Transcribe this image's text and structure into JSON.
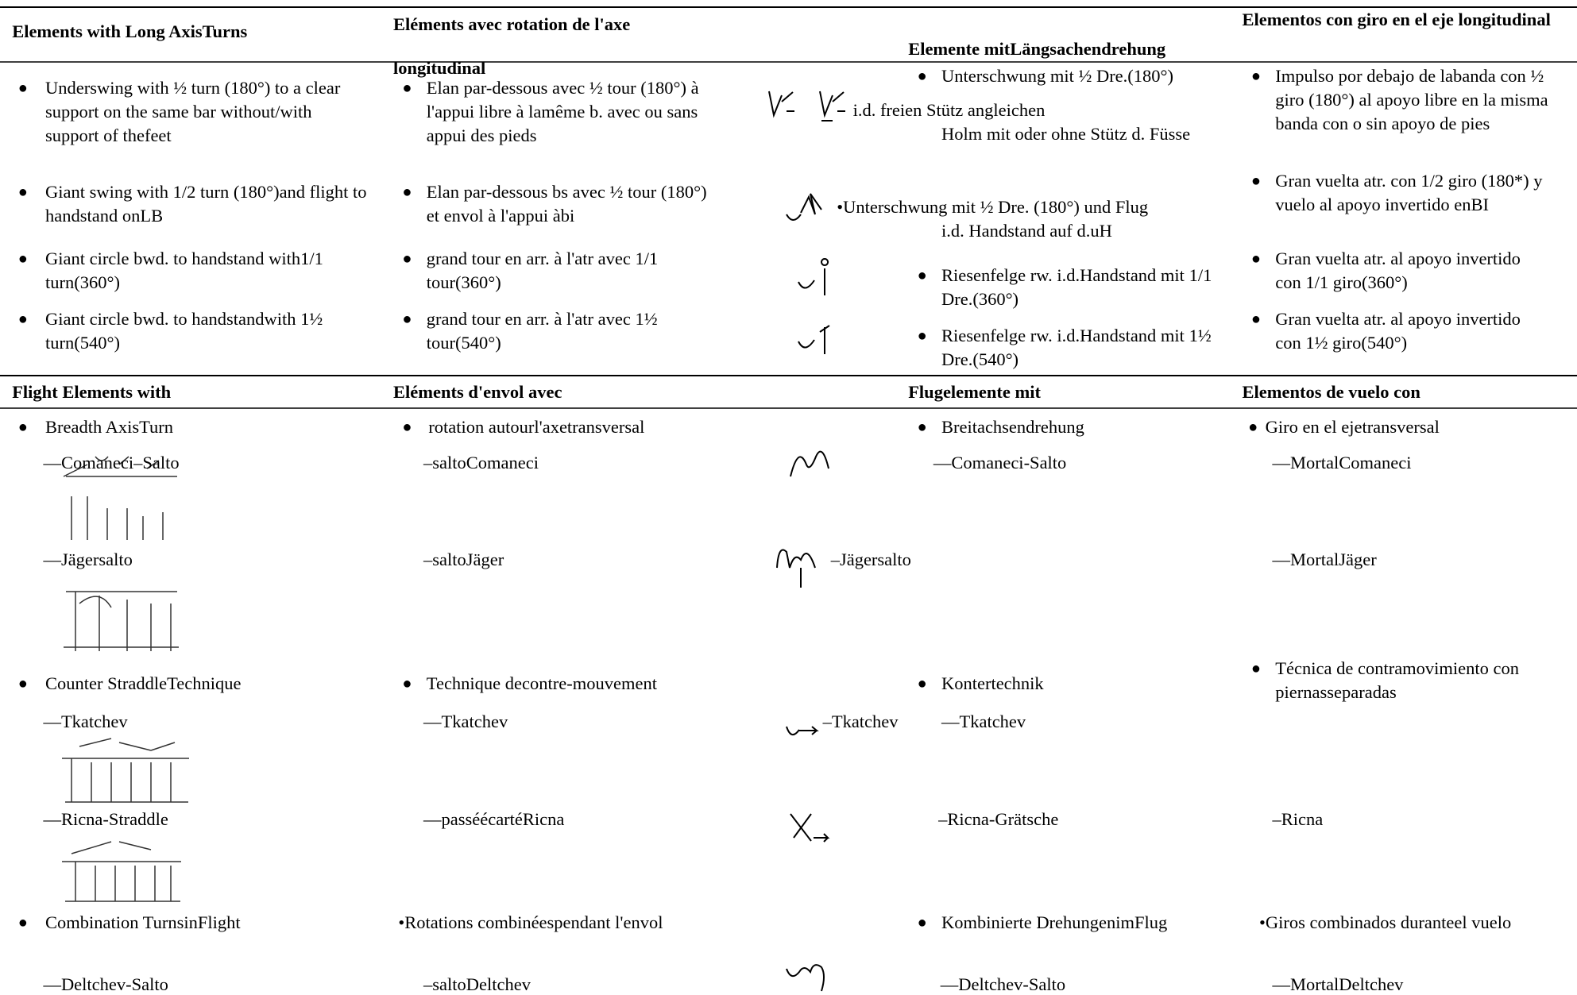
{
  "long_axis": {
    "headers": [
      "Elements with Long AxisTurns",
      "Eléments avec rotation de l'axe longitudinal",
      "Elemente mitLängsachendrehung",
      "Elementos con giro en el eje longitudinal"
    ],
    "rows": [
      [
        "Underswing with ½ turn (180°) to a clear support on the same bar without/with support of thefeet",
        "Elan par-dessous avec ½ tour (180°) à l'appui libre à lamême b. avec ou sans appui des pieds",
        "Unterschwung mit ½ Dre.(180°)",
        "i.d. freien Stütz angleichen",
        "Holm mit oder ohne Stütz d. Füsse",
        "Impulso por debajo de labanda con ½ giro (180°) al apoyo libre en la misma banda con o sin apoyo de pies"
      ],
      [
        "Giant swing with 1/2 turn (180°)and flight to handstand onLB",
        "Elan par-dessous bs avec ½ tour (180°) et envol à l'appui àbi",
        "•Unterschwung mit ½ Dre. (180°) und Flug",
        "i.d. Handstand auf d.uH",
        "Gran vuelta atr. con 1/2 giro (180*) y vuelo al apoyo invertido enBI"
      ],
      [
        "Giant circle bwd. to handstand with1/1 turn(360°)",
        "grand tour en arr. à l'atr avec 1/1 tour(360°)",
        "Riesenfelge rw. i.d.Handstand mit 1/1 Dre.(360°)",
        "Gran vuelta atr. al apoyo invertido con 1/1 giro(360°)"
      ],
      [
        "Giant circle bwd. to handstandwith 1½ turn(540°)",
        "grand tour en arr. à l'atr avec 1½ tour(540°)",
        "Riesenfelge rw. i.d.Handstand mit 1½ Dre.(540°)",
        "Gran vuelta atr. al apoyo invertido con 1½ giro(540°)"
      ]
    ]
  },
  "flight": {
    "headers": [
      "Flight Elements with",
      "Eléments d'envol avec",
      "Flugelemente mit",
      "Elementos de vuelo con"
    ],
    "rows": [
      [
        "Breadth AxisTurn",
        "rotation autourl'axetransversal",
        "Breitachsendrehung",
        "Giro en el ejetransversal"
      ],
      [
        "—Comaneci–Salto",
        "–saltoComaneci",
        "—Comaneci-Salto",
        "—MortalComaneci"
      ],
      [
        "—Jägersalto",
        "–saltoJäger",
        "–Jägersalto",
        "—MortalJäger"
      ],
      [
        "Counter StraddleTechnique",
        "Technique decontre-mouvement",
        "Kontertechnik",
        "Técnica de contramovimiento con piernasseparadas"
      ],
      [
        "—Tkatchev",
        "—Tkatchev",
        "–Tkatchev",
        "—Tkatchev"
      ],
      [
        "—Ricna-Straddle",
        "—passéécartéRicna",
        "–Ricna-Grätsche",
        "–Ricna"
      ],
      [
        "Combination TurnsinFlight",
        "•Rotations combinéespendant l'envol",
        "Kombinierte DrehungenimFlug",
        "•Giros combinados duranteel vuelo"
      ],
      [
        "—Deltchev-Salto",
        "–saltoDeltchev",
        "—Deltchev-Salto",
        "—MortalDeltchev"
      ]
    ]
  }
}
